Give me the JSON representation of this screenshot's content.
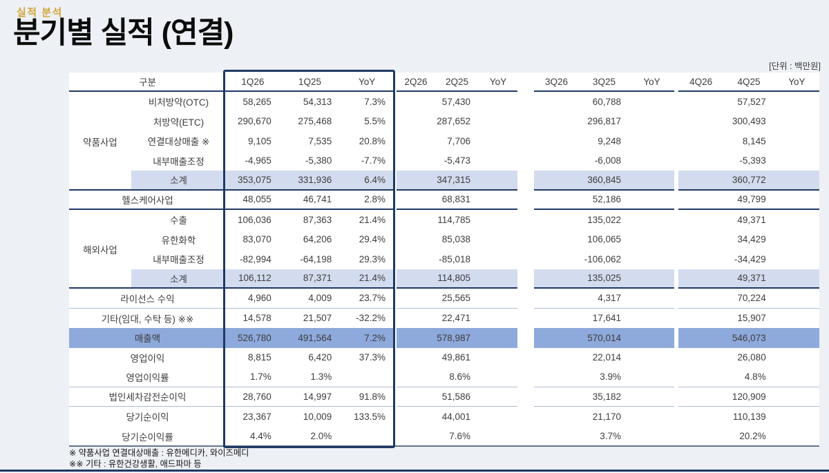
{
  "slide": {
    "eyebrow": "실적 분석",
    "title": "분기별 실적 (연결)",
    "unit_note": "[단위 : 백만원]"
  },
  "colors": {
    "page_bg": "#edf0f5",
    "accent_gold": "#d2a63a",
    "navy_line": "#1f3864",
    "band_light": "#d3dcee",
    "band_medium": "#8ea9db",
    "divider_light": "#aebbd3",
    "text": "#3d3d3d"
  },
  "table": {
    "corner_header": "구분",
    "quarters": [
      {
        "cols": [
          "1Q26",
          "1Q25",
          "YoY"
        ],
        "highlight_box": true
      },
      {
        "cols": [
          "2Q26",
          "2Q25",
          "YoY"
        ],
        "highlight_box": false
      },
      {
        "cols": [
          "3Q26",
          "3Q25",
          "YoY"
        ],
        "highlight_box": false
      },
      {
        "cols": [
          "4Q26",
          "4Q25",
          "YoY"
        ],
        "highlight_box": false
      }
    ],
    "row_groups": [
      {
        "label": "약품사업",
        "from_row": 1,
        "to_row": 5
      },
      {
        "label": "해외사업",
        "from_row": 7,
        "to_row": 10
      }
    ],
    "rows": [
      {
        "label": "비처방약(OTC)",
        "cells": [
          [
            "58,265",
            "54,313",
            "7.3%"
          ],
          [
            "",
            "57,430",
            ""
          ],
          [
            "",
            "60,788",
            ""
          ],
          [
            "",
            "57,527",
            ""
          ]
        ]
      },
      {
        "label": "처방약(ETC)",
        "cells": [
          [
            "290,670",
            "275,468",
            "5.5%"
          ],
          [
            "",
            "287,652",
            ""
          ],
          [
            "",
            "296,817",
            ""
          ],
          [
            "",
            "300,493",
            ""
          ]
        ]
      },
      {
        "label": "연결대상매출 ※",
        "cells": [
          [
            "9,105",
            "7,535",
            "20.8%"
          ],
          [
            "",
            "7,706",
            ""
          ],
          [
            "",
            "9,248",
            ""
          ],
          [
            "",
            "8,145",
            ""
          ]
        ]
      },
      {
        "label": "내부매출조정",
        "cells": [
          [
            "-4,965",
            "-5,380",
            "-7.7%"
          ],
          [
            "",
            "-5,473",
            ""
          ],
          [
            "",
            "-6,008",
            ""
          ],
          [
            "",
            "-5,393",
            ""
          ]
        ]
      },
      {
        "label": "소계",
        "emphasis": "subtotal",
        "rule_below": "strong",
        "cells": [
          [
            "353,075",
            "331,936",
            "6.4%"
          ],
          [
            "",
            "347,315",
            ""
          ],
          [
            "",
            "360,845",
            ""
          ],
          [
            "",
            "360,772",
            ""
          ]
        ]
      },
      {
        "label": "헬스케어사업",
        "full": true,
        "rule_below": "strong",
        "cells": [
          [
            "48,055",
            "46,741",
            "2.8%"
          ],
          [
            "",
            "68,831",
            ""
          ],
          [
            "",
            "52,186",
            ""
          ],
          [
            "",
            "49,799",
            ""
          ]
        ]
      },
      {
        "label": "수출",
        "cells": [
          [
            "106,036",
            "87,363",
            "21.4%"
          ],
          [
            "",
            "114,785",
            ""
          ],
          [
            "",
            "135,022",
            ""
          ],
          [
            "",
            "49,371",
            ""
          ]
        ]
      },
      {
        "label": "유한화학",
        "cells": [
          [
            "83,070",
            "64,206",
            "29.4%"
          ],
          [
            "",
            "85,038",
            ""
          ],
          [
            "",
            "106,065",
            ""
          ],
          [
            "",
            "34,429",
            ""
          ]
        ]
      },
      {
        "label": "내부매출조정",
        "cells": [
          [
            "-82,994",
            "-64,198",
            "29.3%"
          ],
          [
            "",
            "-85,018",
            ""
          ],
          [
            "",
            "-106,062",
            ""
          ],
          [
            "",
            "-34,429",
            ""
          ]
        ]
      },
      {
        "label": "소계",
        "emphasis": "subtotal",
        "rule_below": "strong",
        "cells": [
          [
            "106,112",
            "87,371",
            "21.4%"
          ],
          [
            "",
            "114,805",
            ""
          ],
          [
            "",
            "135,025",
            ""
          ],
          [
            "",
            "49,371",
            ""
          ]
        ]
      },
      {
        "label": "라이선스 수익",
        "full": true,
        "rule_below": "thin",
        "cells": [
          [
            "4,960",
            "4,009",
            "23.7%"
          ],
          [
            "",
            "25,565",
            ""
          ],
          [
            "",
            "4,317",
            ""
          ],
          [
            "",
            "70,224",
            ""
          ]
        ]
      },
      {
        "label": "기타(임대, 수탁 등) ※※",
        "full": true,
        "cells": [
          [
            "14,578",
            "21,507",
            "-32.2%"
          ],
          [
            "",
            "22,471",
            ""
          ],
          [
            "",
            "17,641",
            ""
          ],
          [
            "",
            "15,907",
            ""
          ]
        ]
      },
      {
        "label": "매출액",
        "full": true,
        "emphasis": "total",
        "cells": [
          [
            "526,780",
            "491,564",
            "7.2%"
          ],
          [
            "",
            "578,987",
            ""
          ],
          [
            "",
            "570,014",
            ""
          ],
          [
            "",
            "546,073",
            ""
          ]
        ]
      },
      {
        "label": "영업이익",
        "full": true,
        "cells": [
          [
            "8,815",
            "6,420",
            "37.3%"
          ],
          [
            "",
            "49,861",
            ""
          ],
          [
            "",
            "22,014",
            ""
          ],
          [
            "",
            "26,080",
            ""
          ]
        ]
      },
      {
        "label": "영업이익률",
        "full": true,
        "rule_below": "thin",
        "cells": [
          [
            "1.7%",
            "1.3%",
            ""
          ],
          [
            "",
            "8.6%",
            ""
          ],
          [
            "",
            "3.9%",
            ""
          ],
          [
            "",
            "4.8%",
            ""
          ]
        ]
      },
      {
        "label": "법인세차감전순이익",
        "full": true,
        "rule_below": "thin",
        "cells": [
          [
            "28,760",
            "14,997",
            "91.8%"
          ],
          [
            "",
            "51,586",
            ""
          ],
          [
            "",
            "35,182",
            ""
          ],
          [
            "",
            "120,909",
            ""
          ]
        ]
      },
      {
        "label": "당기순이익",
        "full": true,
        "cells": [
          [
            "23,367",
            "10,009",
            "133.5%"
          ],
          [
            "",
            "44,001",
            ""
          ],
          [
            "",
            "21,170",
            ""
          ],
          [
            "",
            "110,139",
            ""
          ]
        ]
      },
      {
        "label": "당기순이익률",
        "full": true,
        "cells": [
          [
            "4.4%",
            "2.0%",
            ""
          ],
          [
            "",
            "7.6%",
            ""
          ],
          [
            "",
            "3.7%",
            ""
          ],
          [
            "",
            "20.2%",
            ""
          ]
        ]
      }
    ],
    "footnotes": [
      "※ 약품사업 연결대상매출 : 유한메디카, 와이즈메디",
      "※※ 기타 : 유한건강생활, 애드파마 등"
    ]
  }
}
